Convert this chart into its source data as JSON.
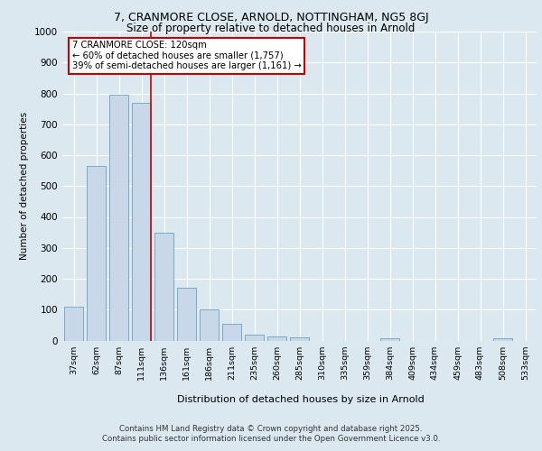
{
  "title_line1": "7, CRANMORE CLOSE, ARNOLD, NOTTINGHAM, NG5 8GJ",
  "title_line2": "Size of property relative to detached houses in Arnold",
  "xlabel": "Distribution of detached houses by size in Arnold",
  "ylabel": "Number of detached properties",
  "categories": [
    "37sqm",
    "62sqm",
    "87sqm",
    "111sqm",
    "136sqm",
    "161sqm",
    "186sqm",
    "211sqm",
    "235sqm",
    "260sqm",
    "285sqm",
    "310sqm",
    "335sqm",
    "359sqm",
    "384sqm",
    "409sqm",
    "434sqm",
    "459sqm",
    "483sqm",
    "508sqm",
    "533sqm"
  ],
  "values": [
    110,
    565,
    795,
    770,
    350,
    170,
    100,
    55,
    18,
    12,
    10,
    0,
    0,
    0,
    8,
    0,
    0,
    0,
    0,
    8,
    0
  ],
  "bar_color": "#c8d8e8",
  "bar_edge_color": "#6fa0c0",
  "background_color": "#dce8f0",
  "grid_color": "#ffffff",
  "annotation_text": "7 CRANMORE CLOSE: 120sqm\n← 60% of detached houses are smaller (1,757)\n39% of semi-detached houses are larger (1,161) →",
  "annotation_box_color": "#ffffff",
  "annotation_box_edge": "#cc0000",
  "red_line_x": 3.42,
  "ylim": [
    0,
    1000
  ],
  "yticks": [
    0,
    100,
    200,
    300,
    400,
    500,
    600,
    700,
    800,
    900,
    1000
  ],
  "footer_line1": "Contains HM Land Registry data © Crown copyright and database right 2025.",
  "footer_line2": "Contains public sector information licensed under the Open Government Licence v3.0."
}
